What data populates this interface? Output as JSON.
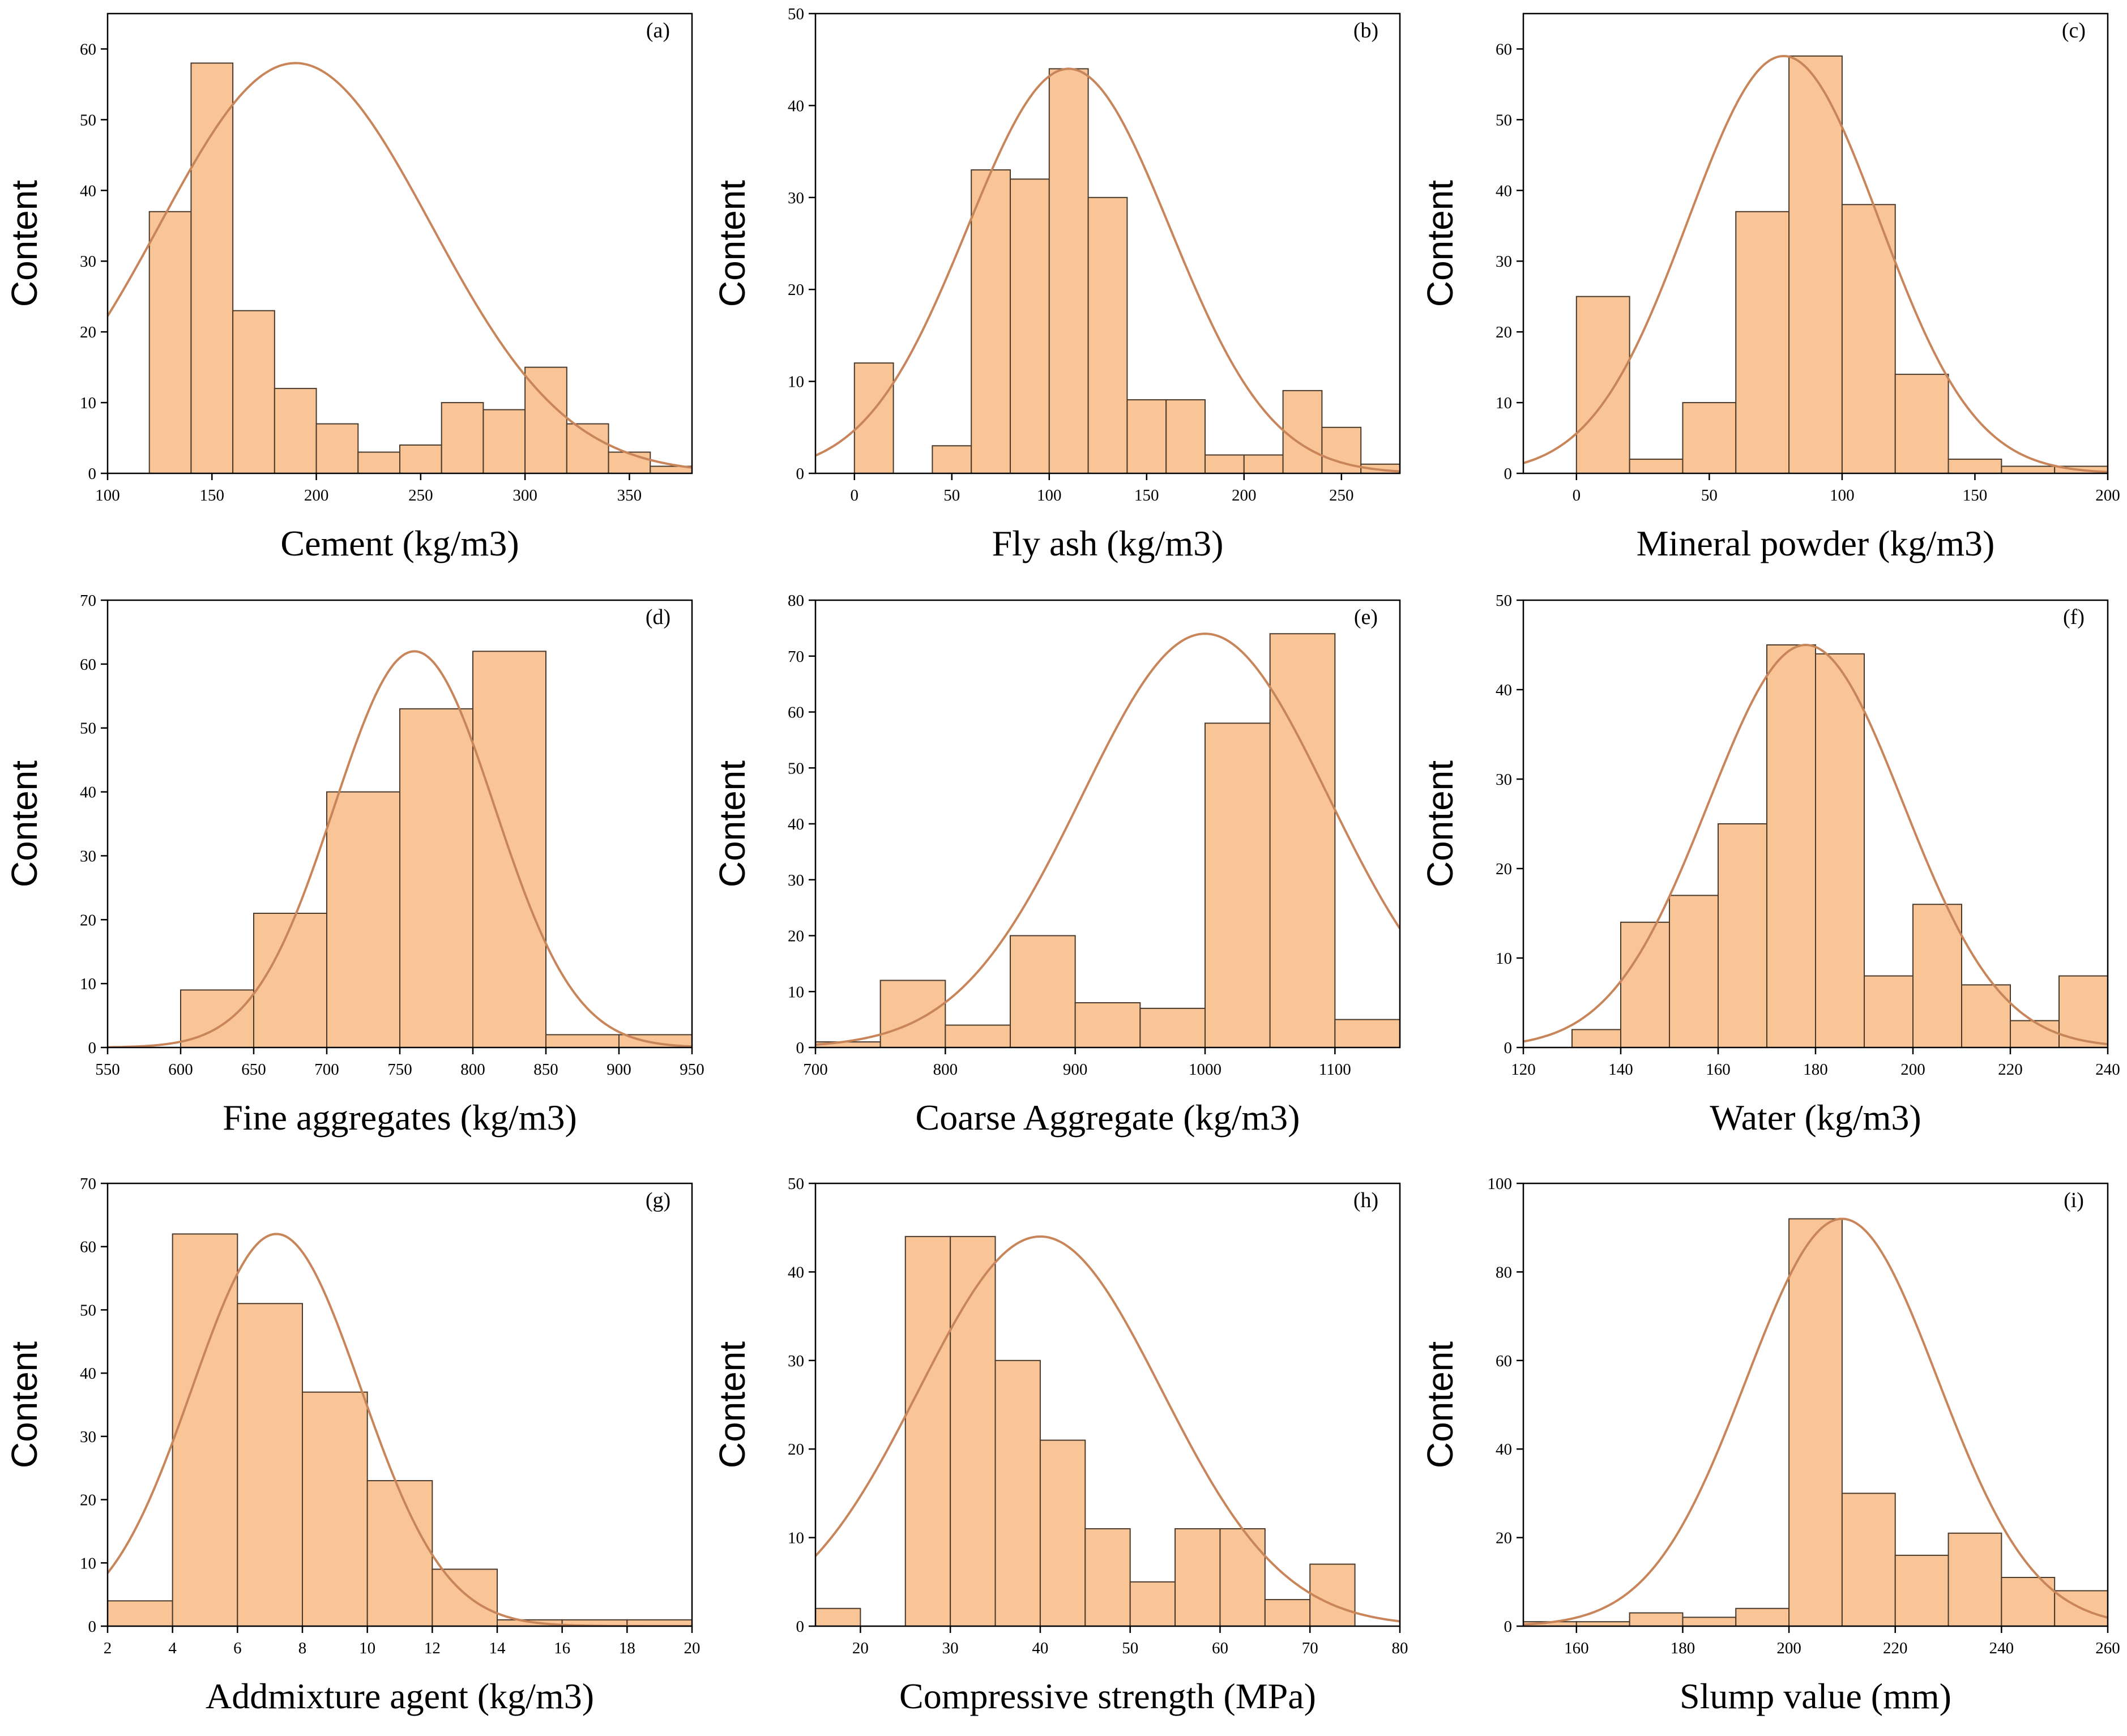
{
  "chart_data": [
    {
      "type": "bar",
      "panel_label": "(a)",
      "title": "",
      "xlabel": "Cement (kg/m3)",
      "ylabel": "Content",
      "xlim": [
        100,
        380
      ],
      "ylim": [
        0,
        65
      ],
      "xticks": [
        100,
        150,
        200,
        250,
        300,
        350
      ],
      "yticks": [
        0,
        10,
        20,
        30,
        40,
        50,
        60
      ],
      "bins": [
        [
          120,
          140
        ],
        [
          140,
          160
        ],
        [
          160,
          180
        ],
        [
          180,
          200
        ],
        [
          200,
          220
        ],
        [
          220,
          240
        ],
        [
          240,
          260
        ],
        [
          260,
          280
        ],
        [
          280,
          300
        ],
        [
          300,
          320
        ],
        [
          320,
          340
        ],
        [
          340,
          360
        ],
        [
          360,
          380
        ]
      ],
      "values": [
        37,
        58,
        23,
        12,
        7,
        3,
        4,
        10,
        9,
        15,
        7,
        3,
        1
      ],
      "fit": {
        "type": "normal",
        "mean": 190,
        "sd": 65,
        "peak": 58
      }
    },
    {
      "type": "bar",
      "panel_label": "(b)",
      "title": "",
      "xlabel": "Fly ash (kg/m3)",
      "ylabel": "Content",
      "xlim": [
        -20,
        280
      ],
      "ylim": [
        0,
        50
      ],
      "xticks": [
        0,
        50,
        100,
        150,
        200,
        250
      ],
      "yticks": [
        0,
        10,
        20,
        30,
        40,
        50
      ],
      "bins": [
        [
          0,
          20
        ],
        [
          40,
          60
        ],
        [
          60,
          80
        ],
        [
          80,
          100
        ],
        [
          100,
          120
        ],
        [
          120,
          140
        ],
        [
          140,
          160
        ],
        [
          160,
          180
        ],
        [
          180,
          200
        ],
        [
          200,
          220
        ],
        [
          220,
          240
        ],
        [
          240,
          260
        ],
        [
          260,
          280
        ]
      ],
      "values": [
        12,
        3,
        33,
        32,
        44,
        30,
        8,
        8,
        2,
        2,
        9,
        5,
        1
      ],
      "fit": {
        "type": "normal",
        "mean": 110,
        "sd": 52,
        "peak": 44
      }
    },
    {
      "type": "bar",
      "panel_label": "(c)",
      "title": "",
      "xlabel": "Mineral powder (kg/m3)",
      "ylabel": "Content",
      "xlim": [
        -20,
        200
      ],
      "ylim": [
        0,
        65
      ],
      "xticks": [
        0,
        50,
        100,
        150,
        200
      ],
      "yticks": [
        0,
        10,
        20,
        30,
        40,
        50,
        60
      ],
      "bins": [
        [
          0,
          20
        ],
        [
          20,
          40
        ],
        [
          40,
          60
        ],
        [
          60,
          80
        ],
        [
          80,
          100
        ],
        [
          100,
          120
        ],
        [
          120,
          140
        ],
        [
          140,
          160
        ],
        [
          160,
          180
        ],
        [
          180,
          200
        ]
      ],
      "values": [
        25,
        2,
        10,
        37,
        59,
        38,
        14,
        2,
        1,
        1
      ],
      "fit": {
        "type": "normal",
        "mean": 78,
        "sd": 36,
        "peak": 59
      }
    },
    {
      "type": "bar",
      "panel_label": "(d)",
      "title": "",
      "xlabel": "Fine aggregates (kg/m3)",
      "ylabel": "Content",
      "xlim": [
        550,
        950
      ],
      "ylim": [
        0,
        70
      ],
      "xticks": [
        550,
        600,
        650,
        700,
        750,
        800,
        850,
        900,
        950
      ],
      "yticks": [
        0,
        10,
        20,
        30,
        40,
        50,
        60,
        70
      ],
      "bins": [
        [
          600,
          650
        ],
        [
          650,
          700
        ],
        [
          700,
          750
        ],
        [
          750,
          800
        ],
        [
          800,
          850
        ],
        [
          850,
          900
        ],
        [
          900,
          950
        ]
      ],
      "values": [
        9,
        21,
        40,
        53,
        62,
        2,
        2
      ],
      "fit": {
        "type": "normal",
        "mean": 760,
        "sd": 55,
        "peak": 62
      }
    },
    {
      "type": "bar",
      "panel_label": "(e)",
      "title": "",
      "xlabel": "Coarse Aggregate (kg/m3)",
      "ylabel": "Content",
      "xlim": [
        700,
        1150
      ],
      "ylim": [
        0,
        80
      ],
      "xticks": [
        700,
        800,
        900,
        1000,
        1100
      ],
      "yticks": [
        0,
        10,
        20,
        30,
        40,
        50,
        60,
        70,
        80
      ],
      "bins": [
        [
          700,
          750
        ],
        [
          750,
          800
        ],
        [
          800,
          850
        ],
        [
          850,
          900
        ],
        [
          900,
          950
        ],
        [
          950,
          1000
        ],
        [
          1000,
          1050
        ],
        [
          1050,
          1100
        ],
        [
          1100,
          1150
        ]
      ],
      "values": [
        1,
        12,
        4,
        20,
        8,
        7,
        58,
        74,
        5
      ],
      "fit": {
        "type": "normal",
        "mean": 1000,
        "sd": 95,
        "peak": 74
      }
    },
    {
      "type": "bar",
      "panel_label": "(f)",
      "title": "",
      "xlabel": "Water (kg/m3)",
      "ylabel": "Content",
      "xlim": [
        120,
        240
      ],
      "ylim": [
        0,
        50
      ],
      "xticks": [
        120,
        140,
        160,
        180,
        200,
        220,
        240
      ],
      "yticks": [
        0,
        10,
        20,
        30,
        40,
        50
      ],
      "bins": [
        [
          130,
          140
        ],
        [
          140,
          150
        ],
        [
          150,
          160
        ],
        [
          160,
          170
        ],
        [
          170,
          180
        ],
        [
          180,
          190
        ],
        [
          190,
          200
        ],
        [
          200,
          210
        ],
        [
          210,
          220
        ],
        [
          220,
          230
        ],
        [
          230,
          240
        ]
      ],
      "values": [
        2,
        14,
        17,
        25,
        45,
        44,
        8,
        16,
        7,
        3,
        8
      ],
      "fit": {
        "type": "normal",
        "mean": 178,
        "sd": 20,
        "peak": 45
      }
    },
    {
      "type": "bar",
      "panel_label": "(g)",
      "title": "",
      "xlabel": "Addmixture agent (kg/m3)",
      "ylabel": "Content",
      "xlim": [
        2,
        20
      ],
      "ylim": [
        0,
        70
      ],
      "xticks": [
        2,
        4,
        6,
        8,
        10,
        12,
        14,
        16,
        18,
        20
      ],
      "yticks": [
        0,
        10,
        20,
        30,
        40,
        50,
        60,
        70
      ],
      "bins": [
        [
          2,
          4
        ],
        [
          4,
          6
        ],
        [
          6,
          8
        ],
        [
          8,
          10
        ],
        [
          10,
          12
        ],
        [
          12,
          14
        ],
        [
          14,
          16
        ],
        [
          16,
          18
        ],
        [
          18,
          20
        ]
      ],
      "values": [
        4,
        62,
        51,
        37,
        23,
        9,
        1,
        1,
        1
      ],
      "fit": {
        "type": "normal",
        "mean": 7.2,
        "sd": 2.6,
        "peak": 62
      }
    },
    {
      "type": "bar",
      "panel_label": "(h)",
      "title": "",
      "xlabel": "Compressive strength (MPa)",
      "ylabel": "Content",
      "xlim": [
        15,
        80
      ],
      "ylim": [
        0,
        50
      ],
      "xticks": [
        20,
        30,
        40,
        50,
        60,
        70,
        80
      ],
      "yticks": [
        0,
        10,
        20,
        30,
        40,
        50
      ],
      "bins": [
        [
          15,
          20
        ],
        [
          25,
          30
        ],
        [
          30,
          35
        ],
        [
          35,
          40
        ],
        [
          40,
          45
        ],
        [
          45,
          50
        ],
        [
          50,
          55
        ],
        [
          55,
          60
        ],
        [
          60,
          65
        ],
        [
          65,
          70
        ],
        [
          70,
          75
        ]
      ],
      "values": [
        2,
        44,
        44,
        30,
        21,
        11,
        5,
        11,
        11,
        3,
        7
      ],
      "fit": {
        "type": "normal",
        "mean": 40,
        "sd": 13.5,
        "peak": 44
      }
    },
    {
      "type": "bar",
      "panel_label": "(i)",
      "title": "",
      "xlabel": "Slump value (mm)",
      "ylabel": "Content",
      "xlim": [
        150,
        260
      ],
      "ylim": [
        0,
        100
      ],
      "xticks": [
        160,
        180,
        200,
        220,
        240,
        260
      ],
      "yticks": [
        0,
        20,
        40,
        60,
        80,
        100
      ],
      "bins": [
        [
          150,
          160
        ],
        [
          160,
          170
        ],
        [
          170,
          180
        ],
        [
          180,
          190
        ],
        [
          190,
          200
        ],
        [
          200,
          210
        ],
        [
          210,
          220
        ],
        [
          220,
          230
        ],
        [
          230,
          240
        ],
        [
          240,
          250
        ],
        [
          250,
          260
        ]
      ],
      "values": [
        1,
        1,
        3,
        2,
        4,
        92,
        30,
        16,
        21,
        11,
        8
      ],
      "fit": {
        "type": "normal",
        "mean": 210,
        "sd": 18,
        "peak": 92
      }
    }
  ]
}
